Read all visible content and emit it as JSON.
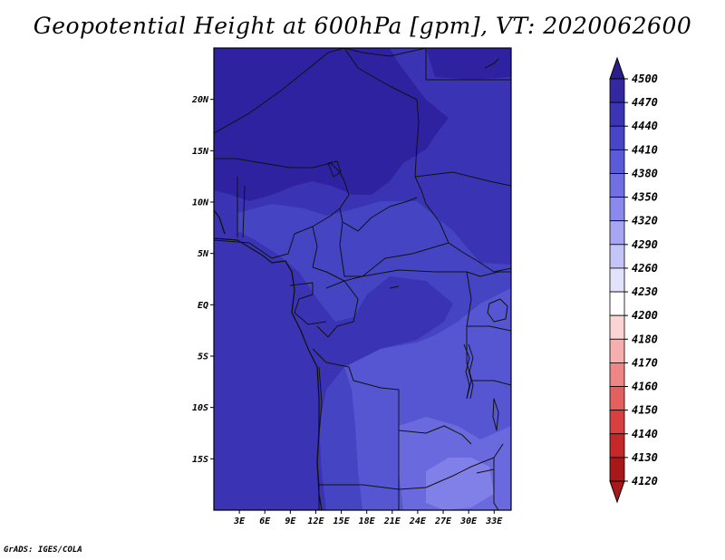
{
  "title": "Geopotential Height at 600hPa [gpm], VT: 2020062600",
  "footer": "GrADS: IGES/COLA",
  "map": {
    "lon_range": [
      0,
      35
    ],
    "lat_range": [
      -20,
      25
    ],
    "lat_ticks": [
      {
        "value": 20,
        "label": "20N"
      },
      {
        "value": 15,
        "label": "15N"
      },
      {
        "value": 10,
        "label": "10N"
      },
      {
        "value": 5,
        "label": "5N"
      },
      {
        "value": 0,
        "label": "EQ"
      },
      {
        "value": -5,
        "label": "5S"
      },
      {
        "value": -10,
        "label": "10S"
      },
      {
        "value": -15,
        "label": "15S"
      }
    ],
    "lon_ticks": [
      {
        "value": 3,
        "label": "3E"
      },
      {
        "value": 6,
        "label": "6E"
      },
      {
        "value": 9,
        "label": "9E"
      },
      {
        "value": 12,
        "label": "12E"
      },
      {
        "value": 15,
        "label": "15E"
      },
      {
        "value": 18,
        "label": "18E"
      },
      {
        "value": 21,
        "label": "21E"
      },
      {
        "value": 24,
        "label": "24E"
      },
      {
        "value": 27,
        "label": "27E"
      },
      {
        "value": 30,
        "label": "30E"
      },
      {
        "value": 33,
        "label": "33E"
      }
    ]
  },
  "colorbar": {
    "levels": [
      "4500",
      "4470",
      "4440",
      "4410",
      "4380",
      "4350",
      "4320",
      "4290",
      "4260",
      "4230",
      "4200",
      "4180",
      "4170",
      "4160",
      "4150",
      "4140",
      "4130",
      "4120"
    ],
    "colors": [
      "#2b1d8c",
      "#3328a0",
      "#3a35b3",
      "#4646c6",
      "#5a5bd6",
      "#7070e2",
      "#8a8aec",
      "#a6a6f3",
      "#c4c4f8",
      "#e2e2fc",
      "#ffffff",
      "#fcd4d4",
      "#f7aeae",
      "#ee8686",
      "#e46060",
      "#d84040",
      "#c52828",
      "#a81818"
    ]
  },
  "legend_colors": {
    "c4470": "#2e22a0",
    "c4440": "#3a34b4",
    "c4410": "#4545c4",
    "c4380": "#5656d2",
    "c4350": "#6a69de",
    "c4320": "#8080e8"
  }
}
